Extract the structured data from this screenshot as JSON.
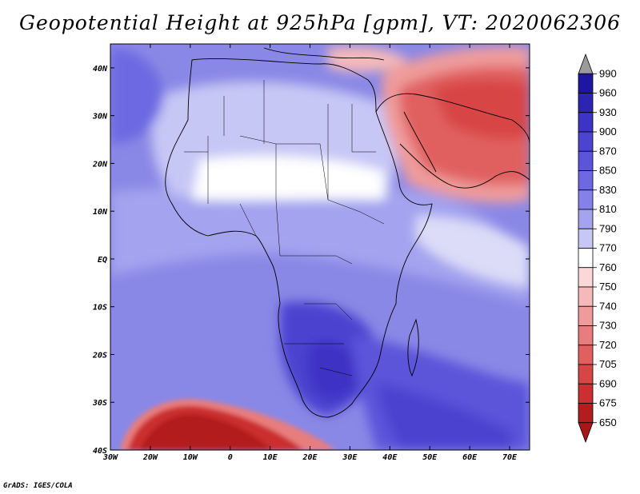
{
  "title": "Geopotential Height at 925hPa [gpm], VT: 2020062306",
  "credit": "GrADS: IGES/COLA",
  "map": {
    "region": "Africa and Middle East",
    "lon_range": [
      -30,
      75
    ],
    "lat_range": [
      -40,
      45
    ]
  },
  "axes": {
    "lon_ticks": [
      {
        "value": -30,
        "label": "30W"
      },
      {
        "value": -20,
        "label": "20W"
      },
      {
        "value": -10,
        "label": "10W"
      },
      {
        "value": 0,
        "label": "0"
      },
      {
        "value": 10,
        "label": "10E"
      },
      {
        "value": 20,
        "label": "20E"
      },
      {
        "value": 30,
        "label": "30E"
      },
      {
        "value": 40,
        "label": "40E"
      },
      {
        "value": 50,
        "label": "50E"
      },
      {
        "value": 60,
        "label": "60E"
      },
      {
        "value": 70,
        "label": "70E"
      }
    ],
    "lat_ticks": [
      {
        "value": 40,
        "label": "40N"
      },
      {
        "value": 30,
        "label": "30N"
      },
      {
        "value": 20,
        "label": "20N"
      },
      {
        "value": 10,
        "label": "10N"
      },
      {
        "value": 0,
        "label": "EQ"
      },
      {
        "value": -10,
        "label": "10S"
      },
      {
        "value": -20,
        "label": "20S"
      },
      {
        "value": -30,
        "label": "30S"
      },
      {
        "value": -40,
        "label": "40S"
      }
    ]
  },
  "colorbar": {
    "levels": [
      {
        "label": "990",
        "color": "#9b9b9b"
      },
      {
        "label": "960",
        "color": "#1e16a3"
      },
      {
        "label": "930",
        "color": "#2d24b4"
      },
      {
        "label": "900",
        "color": "#3d33c4"
      },
      {
        "label": "870",
        "color": "#4c43d0"
      },
      {
        "label": "850",
        "color": "#5b55da"
      },
      {
        "label": "830",
        "color": "#6d69e2"
      },
      {
        "label": "810",
        "color": "#8482e8"
      },
      {
        "label": "790",
        "color": "#a3a3ef"
      },
      {
        "label": "770",
        "color": "#c6c7f5"
      },
      {
        "label": "760",
        "color": "#ffffff"
      },
      {
        "label": "750",
        "color": "#fbd8d8"
      },
      {
        "label": "740",
        "color": "#f5b9b9"
      },
      {
        "label": "730",
        "color": "#ef9b9b"
      },
      {
        "label": "720",
        "color": "#e87d7d"
      },
      {
        "label": "705",
        "color": "#e06060"
      },
      {
        "label": "690",
        "color": "#d84545"
      },
      {
        "label": "675",
        "color": "#cb2f2f"
      },
      {
        "label": "650",
        "color": "#b31d1d"
      }
    ],
    "bottom_arrow_color": "#a81616"
  },
  "fields": {
    "background": "#8a88e6",
    "regions": [
      {
        "name": "south-atlantic-low",
        "color": "#b31d1d"
      },
      {
        "name": "middle-east-low",
        "color": "#d84545"
      },
      {
        "name": "arabia-low",
        "color": "#e06060"
      },
      {
        "name": "sahara-high",
        "color": "#c6c7f5"
      },
      {
        "name": "southern-africa-high",
        "color": "#3d33c4"
      },
      {
        "name": "indian-ocean-high",
        "color": "#4c43d0"
      }
    ]
  }
}
